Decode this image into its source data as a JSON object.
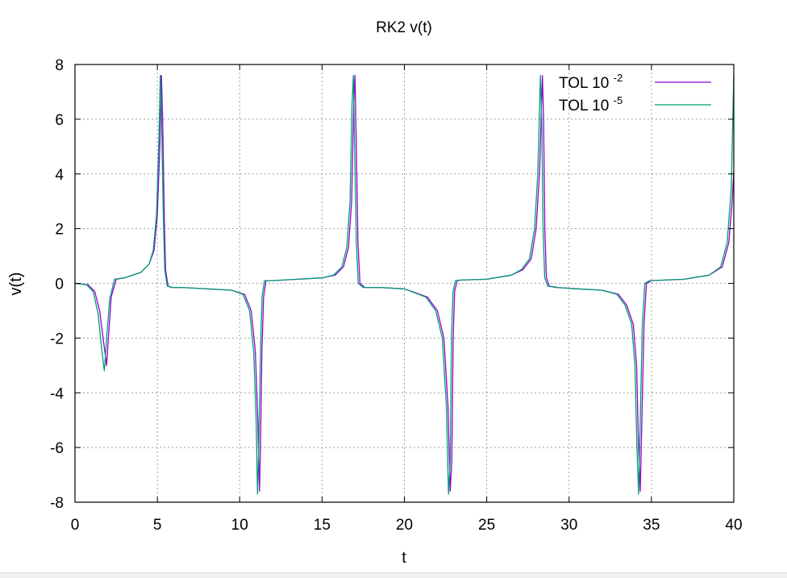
{
  "chart_data": {
    "type": "line",
    "title": "RK2 v(t)",
    "xlabel": "t",
    "ylabel": "v(t)",
    "xlim": [
      0,
      40
    ],
    "ylim": [
      -8,
      8
    ],
    "xticks": [
      "0",
      "5",
      "10",
      "15",
      "20",
      "25",
      "30",
      "35",
      "40"
    ],
    "yticks": [
      "-8",
      "-6",
      "-4",
      "-2",
      "0",
      "2",
      "4",
      "6",
      "8"
    ],
    "grid": true,
    "legend_position": "top-right",
    "series": [
      {
        "name": "TOL 10",
        "name_exponent": "-2",
        "color": "#9400d3",
        "x": [
          0,
          0.8,
          1.2,
          1.5,
          1.75,
          1.92,
          2.05,
          2.2,
          2.5,
          3.0,
          3.5,
          4.0,
          4.5,
          4.8,
          5.0,
          5.15,
          5.25,
          5.32,
          5.42,
          5.5,
          5.65,
          5.9,
          6.5,
          8.0,
          9.5,
          10.3,
          10.7,
          10.95,
          11.1,
          11.2,
          11.26,
          11.35,
          11.45,
          11.6,
          12.0,
          13.5,
          15.0,
          15.8,
          16.3,
          16.6,
          16.8,
          16.92,
          17.0,
          17.08,
          17.18,
          17.3,
          17.6,
          18.5,
          20.0,
          21.4,
          22.0,
          22.4,
          22.65,
          22.78,
          22.88,
          22.96,
          23.05,
          23.2,
          23.5,
          25.0,
          26.5,
          27.2,
          27.7,
          28.0,
          28.2,
          28.38,
          28.45,
          28.53,
          28.62,
          28.8,
          29.3,
          30.5,
          32.0,
          33.0,
          33.5,
          33.9,
          34.1,
          34.22,
          34.32,
          34.42,
          34.55,
          34.7,
          35.0,
          37.0,
          38.5,
          39.3,
          39.7,
          39.9,
          40.0
        ],
        "y": [
          0,
          -0.05,
          -0.3,
          -1.0,
          -2.2,
          -3.0,
          -1.8,
          -0.5,
          0.15,
          0.2,
          0.3,
          0.4,
          0.7,
          1.2,
          2.5,
          5.0,
          7.6,
          6.0,
          2.5,
          0.5,
          -0.1,
          -0.15,
          -0.15,
          -0.2,
          -0.25,
          -0.4,
          -1.0,
          -2.5,
          -5.0,
          -7.6,
          -6.0,
          -2.5,
          -0.5,
          0.1,
          0.1,
          0.15,
          0.2,
          0.3,
          0.6,
          1.3,
          3.0,
          6.5,
          7.6,
          5.0,
          1.5,
          0.0,
          -0.15,
          -0.15,
          -0.2,
          -0.5,
          -1.0,
          -2.0,
          -4.5,
          -7.6,
          -6.5,
          -2.0,
          -0.3,
          0.1,
          0.12,
          0.15,
          0.3,
          0.5,
          0.9,
          2.0,
          4.0,
          7.6,
          6.0,
          2.0,
          0.2,
          -0.1,
          -0.15,
          -0.2,
          -0.25,
          -0.4,
          -0.8,
          -1.5,
          -3.0,
          -6.0,
          -7.6,
          -5.0,
          -1.5,
          0.0,
          0.1,
          0.15,
          0.3,
          0.6,
          1.5,
          3.0,
          4.1
        ]
      },
      {
        "name": "TOL 10",
        "name_exponent": "-5",
        "color": "#009e73",
        "x": [
          0,
          0.7,
          1.1,
          1.4,
          1.62,
          1.78,
          1.92,
          2.1,
          2.4,
          3.0,
          3.5,
          4.0,
          4.5,
          4.75,
          4.95,
          5.08,
          5.18,
          5.26,
          5.36,
          5.45,
          5.6,
          5.85,
          6.5,
          8.0,
          9.5,
          10.2,
          10.6,
          10.85,
          11.0,
          11.08,
          11.16,
          11.26,
          11.36,
          11.5,
          12.0,
          13.5,
          15.0,
          15.7,
          16.2,
          16.5,
          16.7,
          16.82,
          16.9,
          16.98,
          17.08,
          17.2,
          17.5,
          18.5,
          20.0,
          21.3,
          21.9,
          22.3,
          22.55,
          22.68,
          22.78,
          22.86,
          22.95,
          23.1,
          23.4,
          25.0,
          26.5,
          27.1,
          27.6,
          27.9,
          28.1,
          28.26,
          28.34,
          28.42,
          28.52,
          28.7,
          29.2,
          30.5,
          32.0,
          32.9,
          33.4,
          33.8,
          34.0,
          34.12,
          34.22,
          34.32,
          34.45,
          34.6,
          34.9,
          37.0,
          38.5,
          39.2,
          39.6,
          39.85,
          40.0
        ],
        "y": [
          0,
          -0.05,
          -0.3,
          -1.1,
          -2.4,
          -3.2,
          -2.0,
          -0.6,
          0.15,
          0.2,
          0.3,
          0.4,
          0.7,
          1.2,
          2.5,
          5.0,
          7.6,
          6.0,
          2.5,
          0.5,
          -0.1,
          -0.15,
          -0.15,
          -0.2,
          -0.25,
          -0.4,
          -1.0,
          -2.5,
          -5.0,
          -7.7,
          -6.0,
          -2.5,
          -0.5,
          0.1,
          0.1,
          0.15,
          0.2,
          0.3,
          0.6,
          1.3,
          3.0,
          6.5,
          7.6,
          5.0,
          1.5,
          0.0,
          -0.15,
          -0.15,
          -0.2,
          -0.5,
          -1.0,
          -2.0,
          -4.5,
          -7.7,
          -6.5,
          -2.0,
          -0.3,
          0.1,
          0.12,
          0.15,
          0.3,
          0.5,
          0.9,
          2.0,
          4.0,
          7.6,
          6.0,
          2.0,
          0.2,
          -0.1,
          -0.15,
          -0.2,
          -0.25,
          -0.4,
          -0.8,
          -1.5,
          -3.0,
          -6.0,
          -7.7,
          -5.0,
          -1.5,
          0.0,
          0.1,
          0.15,
          0.3,
          0.6,
          1.5,
          3.5,
          7.6
        ]
      }
    ]
  }
}
